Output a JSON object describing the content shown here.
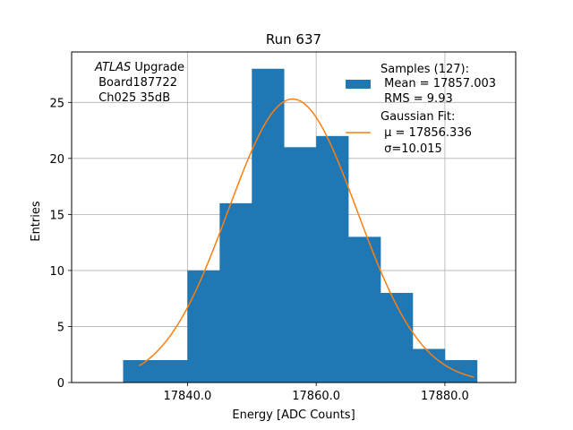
{
  "chart_data": {
    "type": "bar",
    "title": "Run 637",
    "xlabel": "Energy [ADC Counts]",
    "ylabel": "Entries",
    "xlim": [
      17822,
      17891
    ],
    "ylim": [
      0,
      29.5
    ],
    "grid": true,
    "x_ticks": [
      17840,
      17860,
      17880
    ],
    "x_tick_labels": [
      "17840.0",
      "17860.0",
      "17880.0"
    ],
    "y_ticks": [
      0,
      5,
      10,
      15,
      20,
      25
    ],
    "y_tick_labels": [
      "0",
      "5",
      "10",
      "15",
      "20",
      "25"
    ],
    "histogram": {
      "bin_edges": [
        17830,
        17835,
        17840,
        17845,
        17850,
        17855,
        17860,
        17865,
        17870,
        17875,
        17880,
        17885
      ],
      "counts": [
        2,
        2,
        10,
        16,
        28,
        21,
        22,
        13,
        8,
        3,
        2
      ],
      "color": "#1f77b4"
    },
    "fit": {
      "mu": 17856.336,
      "sigma": 10.015,
      "amplitude": 25.3,
      "x_range": [
        17832.5,
        17884.5
      ],
      "color": "#ff7f0e"
    },
    "legend": {
      "placement": "top-right",
      "samples_lines": [
        "Samples (127):",
        " Mean = 17857.003",
        " RMS = 9.93"
      ],
      "fit_lines": [
        "Gaussian Fit:",
        " μ = 17856.336",
        " σ=10.015"
      ]
    },
    "annotation": {
      "lines": [
        "ATLAS Upgrade",
        " Board187722",
        " Ch025 35dB"
      ]
    }
  }
}
